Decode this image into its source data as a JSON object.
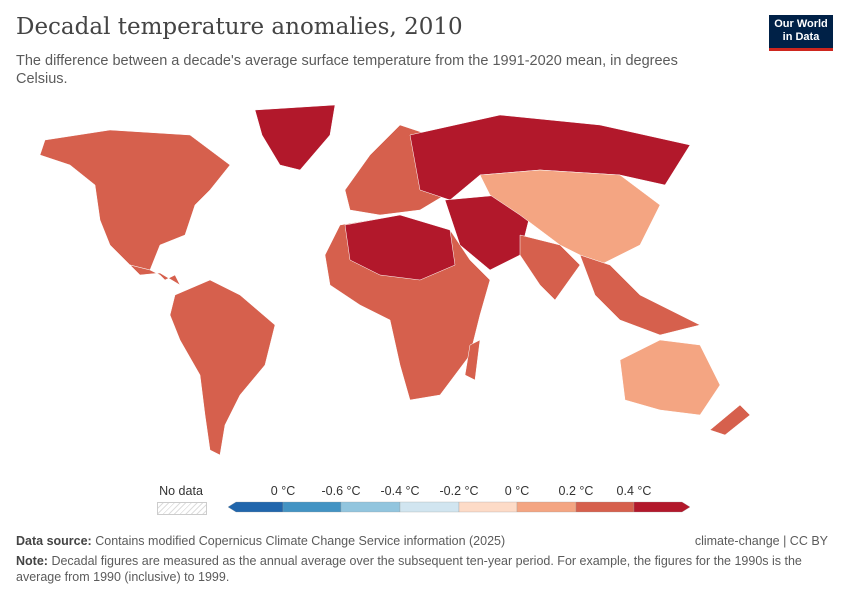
{
  "header": {
    "title": "Decadal temperature anomalies, 2010",
    "subtitle": "The difference between a decade's average surface temperature from the 1991-2020 mean, in degrees Celsius.",
    "logo": "Our World in Data"
  },
  "legend": {
    "no_data": "No data",
    "labels": [
      "0 °C",
      "-0.6 °C",
      "-0.4 °C",
      "-0.2 °C",
      "0 °C",
      "0.2 °C",
      "0.4 °C"
    ],
    "colors": [
      "#2166ac",
      "#4393c3",
      "#92c5de",
      "#d1e5f0",
      "#fddbc7",
      "#f4a582",
      "#d6604d",
      "#b2182b"
    ]
  },
  "footer": {
    "source_label": "Data source:",
    "source": "Contains modified Copernicus Climate Change Service information (2025)",
    "license": "climate-change | CC BY",
    "note_label": "Note:",
    "note": "Decadal figures are measured as the annual average over the subsequent ten-year period. For example, the figures for the 1990s is the average from 1990 (inclusive) to 1999."
  }
}
